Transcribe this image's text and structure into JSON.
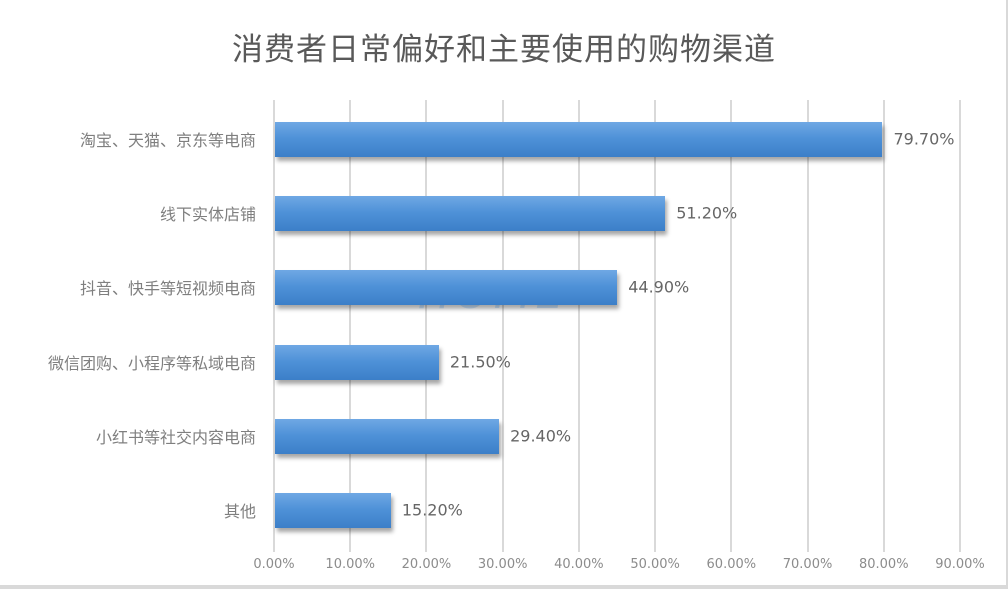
{
  "chart_data": {
    "type": "bar",
    "orientation": "horizontal",
    "title": "消费者日常偏好和主要使用的购物渠道",
    "xlabel": "",
    "ylabel": "",
    "xlim": [
      0,
      90
    ],
    "grid": "vertical",
    "legend": "none",
    "categories": [
      "淘宝、天猫、京东等电商",
      "线下实体店铺",
      "抖音、快手等短视频电商",
      "微信团购、小程序等私域电商",
      "小红书等社交内容电商",
      "其他"
    ],
    "values": [
      79.7,
      51.2,
      44.9,
      21.5,
      29.4,
      15.2
    ],
    "value_labels": [
      "79.70%",
      "51.20%",
      "44.90%",
      "21.50%",
      "29.40%",
      "15.20%"
    ],
    "x_ticks": [
      "0.00%",
      "10.00%",
      "20.00%",
      "30.00%",
      "40.00%",
      "50.00%",
      "60.00%",
      "70.00%",
      "80.00%",
      "90.00%"
    ],
    "bar_color": "#4f92d8"
  },
  "watermark": "HOME"
}
